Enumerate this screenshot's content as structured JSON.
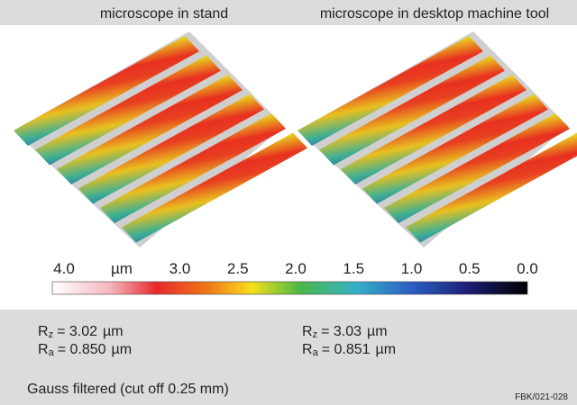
{
  "panels": [
    {
      "title": "microscope in stand",
      "rz": {
        "symbol": "R",
        "sub": "z",
        "text": "= 3.02",
        "unit": "µm"
      },
      "ra": {
        "symbol": "R",
        "sub": "a",
        "text": "= 0.850",
        "unit": "µm"
      }
    },
    {
      "title": "microscope in desktop machine tool",
      "rz": {
        "symbol": "R",
        "sub": "z",
        "text": "= 3.03",
        "unit": "µm"
      },
      "ra": {
        "symbol": "R",
        "sub": "a",
        "text": "= 0.851",
        "unit": "µm"
      }
    }
  ],
  "colorbar": {
    "unit": "µm",
    "range": [
      4,
      0
    ],
    "ticks": [
      {
        "value": 4,
        "label": "4.0"
      },
      {
        "value": 3,
        "label": "3.0"
      },
      2.5,
      {
        "value": 2,
        "label": "2.0"
      },
      1.5,
      {
        "value": 1,
        "label": "1.0"
      },
      0.5,
      {
        "value": 0,
        "label": "0.0"
      }
    ]
  },
  "note": "Gauss filtered (cut off 0.25 mm)",
  "figure_id": "FBK/021-028"
}
